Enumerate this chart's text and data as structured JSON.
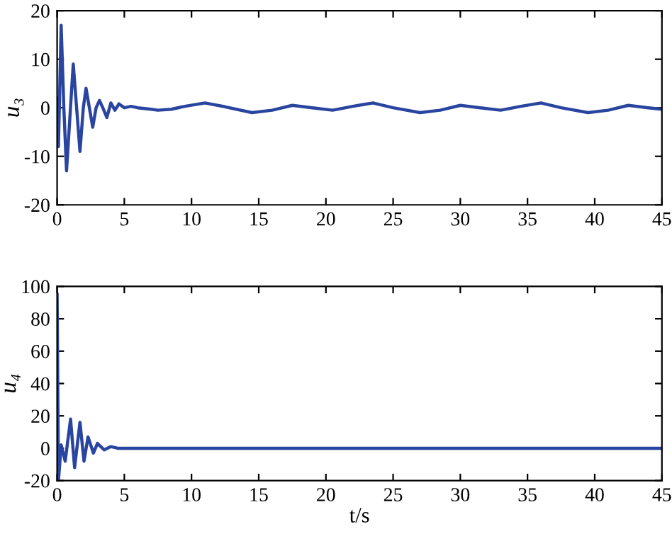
{
  "chart_data": [
    {
      "type": "line",
      "ylabel": "u₃",
      "xlim": [
        0,
        45
      ],
      "ylim": [
        -20,
        20
      ],
      "xticks": [
        0,
        5,
        10,
        15,
        20,
        25,
        30,
        35,
        40,
        45
      ],
      "yticks": [
        -20,
        -10,
        0,
        10,
        20
      ],
      "grid": false,
      "line_style": "solid",
      "series": [
        {
          "color": "#2a45a0",
          "x": [
            0,
            0.1,
            0.3,
            0.5,
            0.7,
            0.95,
            1.2,
            1.45,
            1.7,
            1.95,
            2.15,
            2.4,
            2.65,
            2.9,
            3.15,
            3.4,
            3.7,
            4.0,
            4.3,
            4.6,
            5.0,
            5.5,
            6.0,
            7.0,
            7.5,
            8.5,
            9.5,
            11.0,
            12.5,
            14.5,
            16.0,
            17.5,
            19.0,
            20.5,
            22.0,
            23.5,
            25.0,
            27.0,
            28.5,
            30.0,
            31.5,
            33.0,
            34.5,
            36.0,
            37.5,
            39.5,
            41.0,
            42.5,
            44.0,
            45.0
          ],
          "values": [
            2,
            -8,
            17,
            0,
            -13,
            -2,
            9,
            0,
            -9,
            0,
            4,
            0,
            -4,
            0,
            1.5,
            0,
            -2,
            1,
            -0.5,
            0.8,
            0,
            0.3,
            0,
            -0.3,
            -0.5,
            -0.3,
            0.3,
            1,
            0.2,
            -1,
            -0.5,
            0.5,
            0,
            -0.5,
            0.3,
            1,
            0,
            -1,
            -0.5,
            0.5,
            0,
            -0.5,
            0.3,
            1,
            0,
            -1,
            -0.5,
            0.5,
            0,
            -0.3
          ]
        }
      ]
    },
    {
      "type": "line",
      "xlabel": "t/s",
      "ylabel": "u₄",
      "xlim": [
        0,
        45
      ],
      "ylim": [
        -20,
        100
      ],
      "xticks": [
        0,
        5,
        10,
        15,
        20,
        25,
        30,
        35,
        40,
        45
      ],
      "yticks": [
        -20,
        0,
        20,
        40,
        60,
        80,
        100
      ],
      "grid": false,
      "line_style": "solid",
      "series": [
        {
          "color": "#2a45a0",
          "x": [
            0,
            0.1,
            0.3,
            0.6,
            1.0,
            1.3,
            1.7,
            2.0,
            2.3,
            2.7,
            3.0,
            3.5,
            4.0,
            4.5,
            5.0,
            7.0,
            9.0,
            11.0,
            14.0,
            17.0,
            20.0,
            23.0,
            26.0,
            29.0,
            32.0,
            35.0,
            38.0,
            41.0,
            45.0
          ],
          "values": [
            95,
            -20,
            2,
            -8,
            18,
            -12,
            16,
            -8,
            7,
            -3,
            3,
            -1,
            1,
            0,
            0,
            0,
            0,
            0,
            0,
            0,
            0,
            0,
            0,
            0,
            0,
            0,
            0,
            0,
            0
          ]
        }
      ]
    }
  ]
}
